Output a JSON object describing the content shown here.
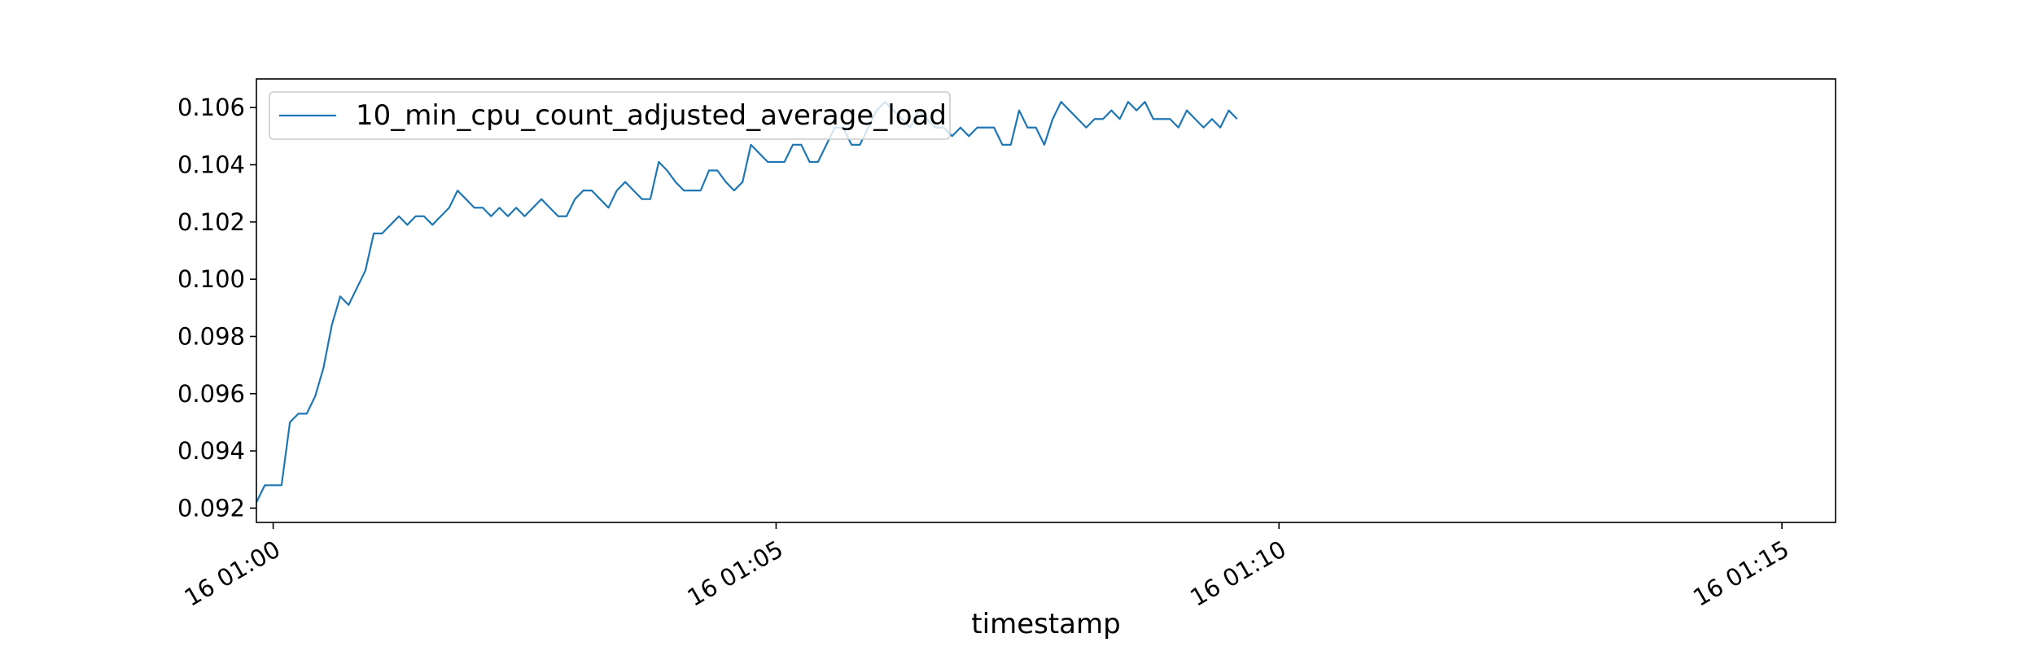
{
  "chart_data": {
    "type": "line",
    "title": "",
    "xlabel": "timestamp",
    "ylabel": "",
    "legend_position": "upper-left",
    "grid": false,
    "x_start": "16 00:59:50",
    "x_step_seconds": 5,
    "xlim": [
      "16 00:59:50",
      "16 01:15:32"
    ],
    "ylim": [
      0.0915,
      0.107
    ],
    "x_ticks": [
      {
        "value": "16 01:00:00",
        "label": "16 01:00"
      },
      {
        "value": "16 01:05:00",
        "label": "16 01:05"
      },
      {
        "value": "16 01:10:00",
        "label": "16 01:10"
      },
      {
        "value": "16 01:15:00",
        "label": "16 01:15"
      }
    ],
    "y_ticks": [
      {
        "value": 0.092,
        "label": "0.092"
      },
      {
        "value": 0.094,
        "label": "0.094"
      },
      {
        "value": 0.096,
        "label": "0.096"
      },
      {
        "value": 0.098,
        "label": "0.098"
      },
      {
        "value": 0.1,
        "label": "0.100"
      },
      {
        "value": 0.102,
        "label": "0.102"
      },
      {
        "value": 0.104,
        "label": "0.104"
      },
      {
        "value": 0.106,
        "label": "0.106"
      }
    ],
    "series": [
      {
        "name": "10_min_cpu_count_adjusted_average_load",
        "color": "#1f77b4",
        "values": [
          0.0922,
          0.0928,
          0.0928,
          0.0928,
          0.095,
          0.0953,
          0.0953,
          0.0959,
          0.0969,
          0.0984,
          0.0994,
          0.0991,
          0.0997,
          0.1003,
          0.1016,
          0.1016,
          0.1019,
          0.1022,
          0.1019,
          0.1022,
          0.1022,
          0.1019,
          0.1022,
          0.1025,
          0.1031,
          0.1028,
          0.1025,
          0.1025,
          0.1022,
          0.1025,
          0.1022,
          0.1025,
          0.1022,
          0.1025,
          0.1028,
          0.1025,
          0.1022,
          0.1022,
          0.1028,
          0.1031,
          0.1031,
          0.1028,
          0.1025,
          0.1031,
          0.1034,
          0.1031,
          0.1028,
          0.1028,
          0.1041,
          0.1038,
          0.1034,
          0.1031,
          0.1031,
          0.1031,
          0.1038,
          0.1038,
          0.1034,
          0.1031,
          0.1034,
          0.1047,
          0.1044,
          0.1041,
          0.1041,
          0.1041,
          0.1047,
          0.1047,
          0.1041,
          0.1041,
          0.1047,
          0.1053,
          0.1053,
          0.1047,
          0.1047,
          0.1053,
          0.1059,
          0.1062,
          0.1059,
          0.1056,
          0.1053,
          0.1059,
          0.1056,
          0.1053,
          0.1053,
          0.105,
          0.1053,
          0.105,
          0.1053,
          0.1053,
          0.1053,
          0.1047,
          0.1047,
          0.1059,
          0.1053,
          0.1053,
          0.1047,
          0.1056,
          0.1062,
          0.1059,
          0.1056,
          0.1053,
          0.1056,
          0.1056,
          0.1059,
          0.1056,
          0.1062,
          0.1059,
          0.1062,
          0.1056,
          0.1056,
          0.1056,
          0.1053,
          0.1059,
          0.1056,
          0.1053,
          0.1056,
          0.1053,
          0.1059,
          0.1056
        ]
      }
    ]
  }
}
